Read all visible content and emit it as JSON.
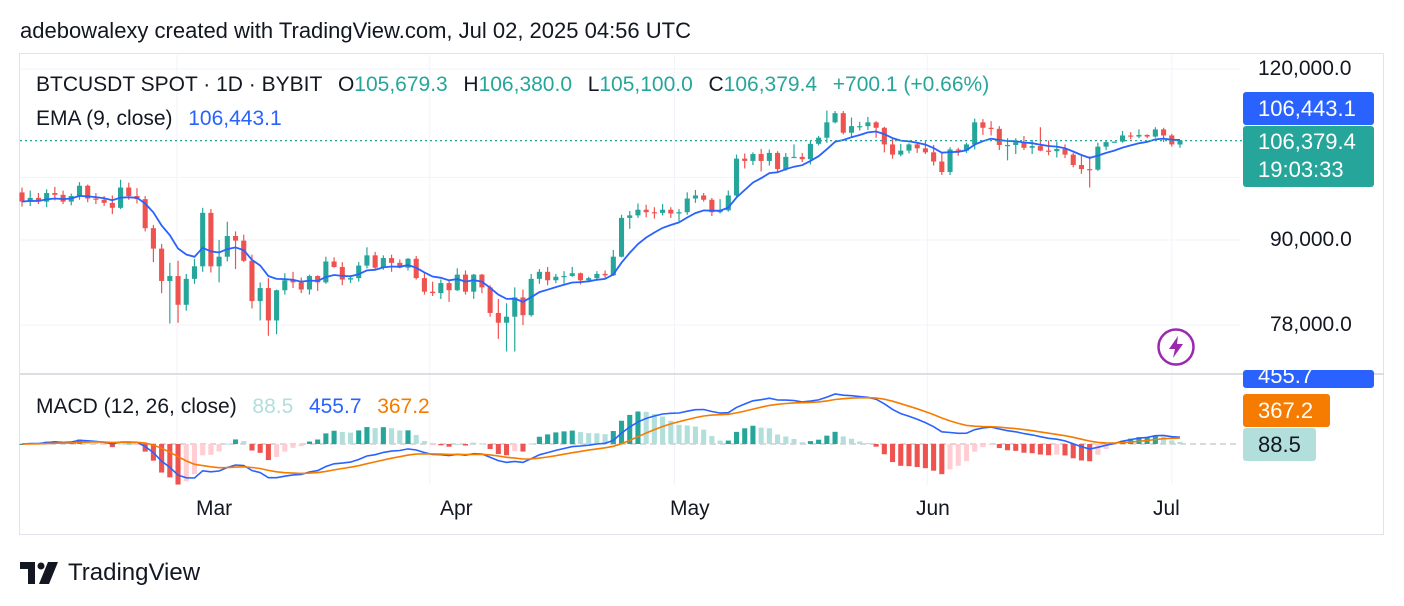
{
  "header": {
    "caption": "adebowalexy created with TradingView.com, Jul 02, 2025 04:56 UTC"
  },
  "legend": {
    "symbol": "BTCUSDT SPOT · 1D · BYBIT",
    "o_label": "O",
    "o_value": "105,679.3",
    "h_label": "H",
    "h_value": "106,380.0",
    "l_label": "L",
    "l_value": "105,100.0",
    "c_label": "C",
    "c_value": "106,379.4",
    "change": "+700.1 (+0.66%)",
    "ema_label": "EMA (9, close)",
    "ema_value": "106,443.1",
    "macd_label": "MACD (12, 26, close)",
    "macd_hist": "88.5",
    "macd_line": "455.7",
    "macd_signal": "367.2"
  },
  "price_axis": {
    "ticks": [
      "120,000.0",
      "90,000.0",
      "78,000.0"
    ],
    "ema_tag": "106,443.1",
    "last_price_tag": "106,379.4",
    "countdown": "19:03:33"
  },
  "macd_axis": {
    "line_tag": "455.7",
    "signal_tag": "367.2",
    "hist_tag": "88.5"
  },
  "time_axis": {
    "labels": [
      "Mar",
      "Apr",
      "May",
      "Jun",
      "Jul"
    ]
  },
  "footer": {
    "brand": "TradingView"
  },
  "colors": {
    "up": "#26a69a",
    "down": "#ef5350",
    "ema": "#2962ff",
    "macd": "#2962ff",
    "signal": "#f57c00",
    "hist_up_light": "#b2dfdb",
    "hist_down_light": "#ffcdd2"
  },
  "chart_data": [
    {
      "type": "candlestick",
      "title": "BTCUSDT SPOT · 1D · BYBIT",
      "scale": "log",
      "x_start": "2025-02-10",
      "x_end": "2025-07-02",
      "ylim": [
        70000,
        124000
      ],
      "y_ticks": [
        78000,
        90000,
        120000
      ],
      "x_ticks": [
        "Mar",
        "Apr",
        "May",
        "Jun",
        "Jul"
      ],
      "grid": true,
      "ohlc": [
        [
          97500,
          98300,
          95200,
          96000
        ],
        [
          96000,
          97800,
          95300,
          96600
        ],
        [
          96600,
          97400,
          95600,
          96000
        ],
        [
          96000,
          98000,
          95100,
          97400
        ],
        [
          97400,
          98400,
          96200,
          97100
        ],
        [
          97100,
          97800,
          95600,
          96000
        ],
        [
          96000,
          97300,
          95400,
          96900
        ],
        [
          96900,
          99200,
          96300,
          98600
        ],
        [
          98600,
          98800,
          95900,
          96500
        ],
        [
          96500,
          97400,
          95600,
          96300
        ],
        [
          96300,
          96900,
          95300,
          95800
        ],
        [
          95800,
          97000,
          94000,
          95000
        ],
        [
          95000,
          99600,
          94800,
          98300
        ],
        [
          98300,
          99100,
          96300,
          96900
        ],
        [
          96900,
          98200,
          95700,
          96400
        ],
        [
          96400,
          96900,
          91300,
          91800
        ],
        [
          91800,
          92300,
          86700,
          88700
        ],
        [
          88700,
          89400,
          82300,
          84000
        ],
        [
          84000,
          86600,
          78200,
          84700
        ],
        [
          84700,
          86900,
          78300,
          80700
        ],
        [
          80700,
          85000,
          79900,
          84300
        ],
        [
          84300,
          87200,
          83600,
          86100
        ],
        [
          86100,
          95000,
          85300,
          94200
        ],
        [
          94200,
          94800,
          85200,
          86100
        ],
        [
          86100,
          90000,
          83800,
          87500
        ],
        [
          87500,
          92800,
          86800,
          90600
        ],
        [
          90600,
          91300,
          85700,
          89900
        ],
        [
          89900,
          90800,
          86700,
          86900
        ],
        [
          86900,
          87800,
          80200,
          81200
        ],
        [
          81200,
          83800,
          78600,
          83000
        ],
        [
          83000,
          84400,
          76600,
          78600
        ],
        [
          78600,
          82800,
          76800,
          82700
        ],
        [
          82700,
          85100,
          82100,
          84100
        ],
        [
          84100,
          85300,
          83000,
          83800
        ],
        [
          83800,
          84500,
          82300,
          82800
        ],
        [
          82800,
          84900,
          82100,
          84700
        ],
        [
          84700,
          84800,
          82600,
          83800
        ],
        [
          83800,
          87500,
          83600,
          86800
        ],
        [
          86800,
          87400,
          85900,
          86000
        ],
        [
          86000,
          86700,
          83400,
          84200
        ],
        [
          84200,
          84800,
          83700,
          84400
        ],
        [
          84400,
          86700,
          83900,
          86200
        ],
        [
          86200,
          88900,
          85800,
          87700
        ],
        [
          87700,
          88200,
          85500,
          85900
        ],
        [
          85900,
          87700,
          85600,
          87300
        ],
        [
          87300,
          87800,
          85300,
          86600
        ],
        [
          86600,
          87100,
          85800,
          85900
        ],
        [
          85900,
          87300,
          85500,
          87200
        ],
        [
          87200,
          87600,
          84200,
          84400
        ],
        [
          84400,
          85100,
          82100,
          82500
        ],
        [
          82500,
          83900,
          81900,
          82300
        ],
        [
          82300,
          84200,
          81500,
          83700
        ],
        [
          83700,
          84000,
          81100,
          82700
        ],
        [
          82700,
          85800,
          82600,
          84900
        ],
        [
          84900,
          85500,
          82100,
          82500
        ],
        [
          82500,
          85000,
          81500,
          84900
        ],
        [
          84900,
          85000,
          82300,
          83100
        ],
        [
          83100,
          83400,
          79100,
          79600
        ],
        [
          79600,
          81500,
          76200,
          78300
        ],
        [
          78300,
          80900,
          74600,
          79100
        ],
        [
          79100,
          83100,
          74600,
          81700
        ],
        [
          81700,
          82800,
          78000,
          79300
        ],
        [
          79300,
          85000,
          79100,
          84300
        ],
        [
          84300,
          85700,
          83600,
          85300
        ],
        [
          85300,
          86000,
          83400,
          84100
        ],
        [
          84100,
          85000,
          83700,
          84600
        ],
        [
          84600,
          85400,
          83600,
          84700
        ],
        [
          84700,
          86000,
          84600,
          85100
        ],
        [
          85100,
          85200,
          83500,
          84100
        ],
        [
          84100,
          84600,
          83800,
          84400
        ],
        [
          84400,
          85400,
          84100,
          85000
        ],
        [
          85000,
          85500,
          84400,
          84800
        ],
        [
          84800,
          88500,
          84700,
          87500
        ],
        [
          87500,
          93900,
          87400,
          93400
        ],
        [
          93400,
          94500,
          91700,
          93800
        ],
        [
          93800,
          95700,
          93400,
          94700
        ],
        [
          94700,
          95500,
          93500,
          94300
        ],
        [
          94300,
          95100,
          93300,
          94200
        ],
        [
          94200,
          95600,
          93800,
          94700
        ],
        [
          94700,
          95100,
          93400,
          94100
        ],
        [
          94100,
          94800,
          92900,
          94300
        ],
        [
          94300,
          97500,
          93900,
          96500
        ],
        [
          96500,
          97900,
          95800,
          97000
        ],
        [
          97000,
          97400,
          96000,
          96300
        ],
        [
          96300,
          96600,
          93700,
          94300
        ],
        [
          94300,
          96400,
          94100,
          94600
        ],
        [
          94600,
          97800,
          94400,
          97000
        ],
        [
          97000,
          103900,
          96800,
          103200
        ],
        [
          103200,
          104100,
          101500,
          102800
        ],
        [
          102800,
          104300,
          102100,
          104000
        ],
        [
          104000,
          104900,
          101000,
          102800
        ],
        [
          102800,
          104800,
          102000,
          104200
        ],
        [
          104200,
          104500,
          100800,
          101400
        ],
        [
          101400,
          104200,
          101100,
          103500
        ],
        [
          103500,
          105700,
          103400,
          103500
        ],
        [
          103500,
          104200,
          102600,
          103100
        ],
        [
          103100,
          106300,
          102200,
          105800
        ],
        [
          105800,
          107200,
          105500,
          106900
        ],
        [
          106900,
          111900,
          106000,
          109700
        ],
        [
          109700,
          111800,
          109500,
          111400
        ],
        [
          111400,
          111800,
          107500,
          107800
        ],
        [
          107800,
          110600,
          106900,
          109000
        ],
        [
          109000,
          109800,
          108200,
          109000
        ],
        [
          109000,
          110700,
          108300,
          109700
        ],
        [
          109700,
          109900,
          106900,
          108700
        ],
        [
          108700,
          108900,
          104300,
          105700
        ],
        [
          105700,
          106700,
          103200,
          103900
        ],
        [
          103900,
          105800,
          103600,
          104600
        ],
        [
          104600,
          105900,
          104100,
          105700
        ],
        [
          105700,
          106000,
          104200,
          105000
        ],
        [
          105000,
          106300,
          104000,
          104300
        ],
        [
          104300,
          105600,
          102000,
          102700
        ],
        [
          102700,
          104100,
          100400,
          100900
        ],
        [
          100900,
          105200,
          100400,
          104800
        ],
        [
          104800,
          105100,
          103700,
          104600
        ],
        [
          104600,
          106000,
          104200,
          105700
        ],
        [
          105700,
          110400,
          104800,
          109700
        ],
        [
          109700,
          110300,
          107400,
          108700
        ],
        [
          108700,
          109900,
          107300,
          108500
        ],
        [
          108500,
          109000,
          104700,
          105600
        ],
        [
          105600,
          106800,
          102900,
          105600
        ],
        [
          105600,
          106800,
          104000,
          106100
        ],
        [
          106100,
          107200,
          104700,
          105100
        ],
        [
          105100,
          106500,
          104000,
          105400
        ],
        [
          105400,
          108800,
          104500,
          104600
        ],
        [
          104600,
          106400,
          103800,
          104500
        ],
        [
          104500,
          106200,
          103400,
          104900
        ],
        [
          104900,
          105700,
          103300,
          103900
        ],
        [
          103900,
          104200,
          101700,
          102100
        ],
        [
          102100,
          103800,
          100600,
          101400
        ],
        [
          101400,
          103600,
          98300,
          101300
        ],
        [
          101300,
          106000,
          101100,
          105300
        ],
        [
          105300,
          106400,
          104700,
          106100
        ],
        [
          106100,
          106200,
          106000,
          106200
        ],
        [
          106200,
          108100,
          106000,
          107300
        ],
        [
          107300,
          107900,
          106600,
          107100
        ],
        [
          107100,
          108400,
          106800,
          107400
        ],
        [
          107400,
          107500,
          106800,
          107100
        ],
        [
          107100,
          108800,
          106900,
          108400
        ],
        [
          108400,
          108700,
          106100,
          107300
        ],
        [
          107300,
          107600,
          105300,
          105700
        ],
        [
          105679.3,
          106380,
          105100,
          106379.4
        ]
      ],
      "ema": {
        "name": "EMA (9, close)",
        "last": 106443.1,
        "period": 9
      },
      "last_price": 106379.4
    },
    {
      "type": "macd",
      "title": "MACD (12, 26, close)",
      "series": [
        {
          "name": "histogram",
          "last": 88.5
        },
        {
          "name": "macd",
          "last": 455.7
        },
        {
          "name": "signal",
          "last": 367.2
        }
      ]
    }
  ]
}
